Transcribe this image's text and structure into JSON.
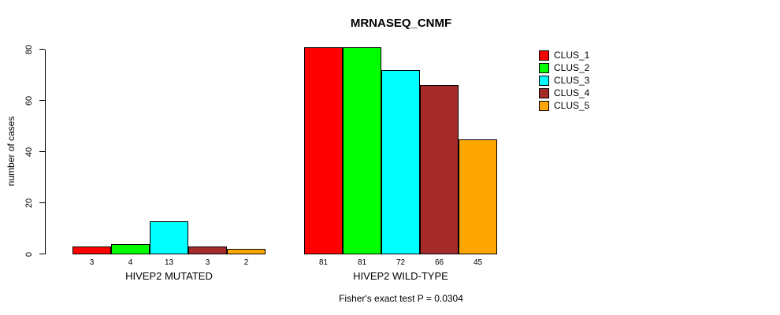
{
  "chart_data": {
    "type": "bar",
    "title": "MRNASEQ_CNMF",
    "ylabel": "number of cases",
    "xlabel": "",
    "ylim": [
      0,
      81
    ],
    "yticks": [
      0,
      20,
      40,
      60,
      80
    ],
    "grid": false,
    "legend_position": "right",
    "bar_value_labels_shown": true,
    "categories": [
      "HIVEP2 MUTATED",
      "HIVEP2 WILD-TYPE"
    ],
    "series": [
      {
        "name": "CLUS_1",
        "color": "#FF0000",
        "values": [
          3,
          81
        ]
      },
      {
        "name": "CLUS_2",
        "color": "#00FF00",
        "values": [
          4,
          81
        ]
      },
      {
        "name": "CLUS_3",
        "color": "#00FFFF",
        "values": [
          13,
          72
        ]
      },
      {
        "name": "CLUS_4",
        "color": "#A52A2A",
        "values": [
          3,
          66
        ]
      },
      {
        "name": "CLUS_5",
        "color": "#FFA500",
        "values": [
          2,
          45
        ]
      }
    ],
    "caption": "Fisher's exact test P = 0.0304"
  }
}
